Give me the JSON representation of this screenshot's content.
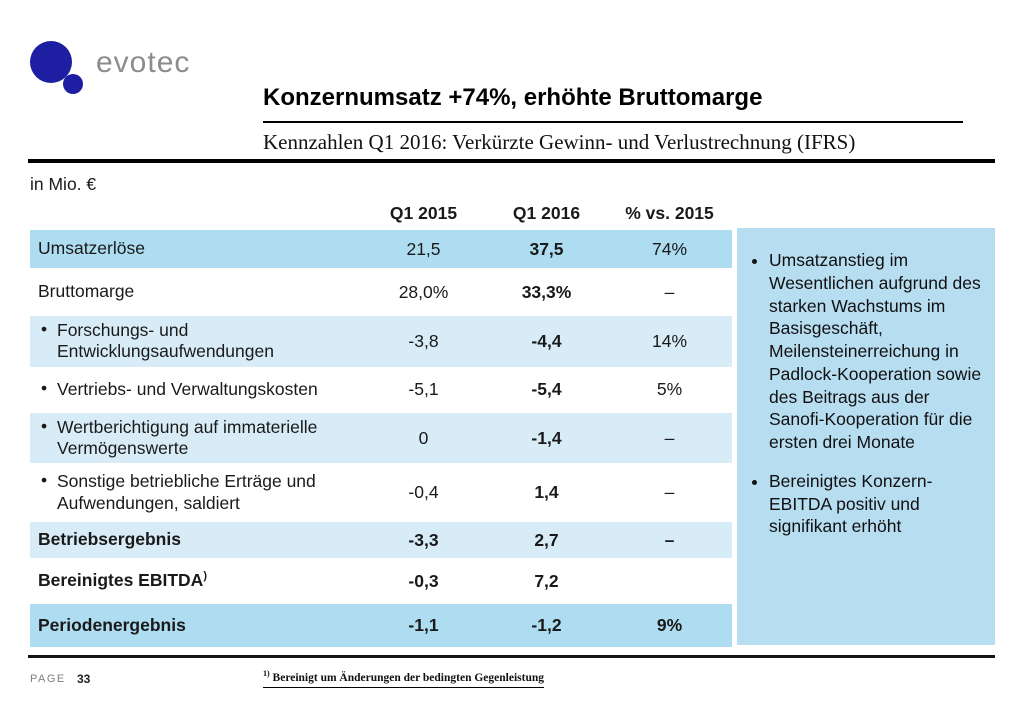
{
  "brand": {
    "name": "evotec"
  },
  "header": {
    "title": "Konzernumsatz +74%, erhöhte Bruttomarge",
    "subtitle": "Kennzahlen Q1 2016: Verkürzte Gewinn- und Verlustrechnung (IFRS)"
  },
  "table": {
    "unit_label": "in Mio. €",
    "columns": [
      "Q1 2015",
      "Q1 2016",
      "% vs. 2015"
    ],
    "rows": [
      {
        "label": "Umsatzerlöse",
        "bullet": false,
        "bold": false,
        "style": "highlight",
        "values": [
          "21,5",
          "37,5",
          "74%"
        ]
      },
      {
        "label": "Bruttomarge",
        "bullet": false,
        "bold": false,
        "style": "plain",
        "values": [
          "28,0%",
          "33,3%",
          "–"
        ]
      },
      {
        "label": "Forschungs- und Entwicklungsaufwendungen",
        "bullet": true,
        "bold": false,
        "style": "light",
        "values": [
          "-3,8",
          "-4,4",
          "14%"
        ]
      },
      {
        "label": "Vertriebs- und Verwaltungskosten",
        "bullet": true,
        "bold": false,
        "style": "plain",
        "values": [
          "-5,1",
          "-5,4",
          "5%"
        ]
      },
      {
        "label": "Wertberichtigung auf immaterielle Vermögenswerte",
        "bullet": true,
        "bold": false,
        "style": "light",
        "values": [
          "0",
          "-1,4",
          "–"
        ]
      },
      {
        "label": "Sonstige betriebliche Erträge und Aufwendungen, saldiert",
        "bullet": true,
        "bold": false,
        "style": "plain",
        "values": [
          "-0,4",
          "1,4",
          "–"
        ]
      },
      {
        "label": "Betriebsergebnis",
        "bullet": false,
        "bold": true,
        "style": "light",
        "values": [
          "-3,3",
          "2,7",
          "–"
        ]
      },
      {
        "label": "Bereinigtes EBITDA",
        "label_sup": ")",
        "bullet": false,
        "bold": true,
        "style": "plain",
        "values": [
          "-0,3",
          "7,2",
          ""
        ]
      },
      {
        "label": "Periodenergebnis",
        "bullet": false,
        "bold": true,
        "style": "highlight",
        "values": [
          "-1,1",
          "-1,2",
          "9%"
        ]
      }
    ]
  },
  "sidebar": {
    "bullets": [
      "Umsatzanstieg im Wesentlichen aufgrund des starken Wachstums im Basisgeschäft, Meilensteinerreichung in Padlock-Kooperation sowie des Beitrags aus der Sanofi-Kooperation für die ersten drei Monate",
      "Bereinigtes Konzern-EBITDA positiv und signifikant erhöht"
    ]
  },
  "footer": {
    "page_label": "PAGE",
    "page_number": "33",
    "footnote_marker": "1)",
    "footnote_text": "Bereinigt um Änderungen der bedingten Gegenleistung"
  },
  "colors": {
    "logo_blue": "#1e1ea2",
    "row_highlight": "#aedcf0",
    "row_light": "#d8ecf8",
    "sidebar_bg": "#b7ddf0",
    "rule_black": "#000000"
  }
}
